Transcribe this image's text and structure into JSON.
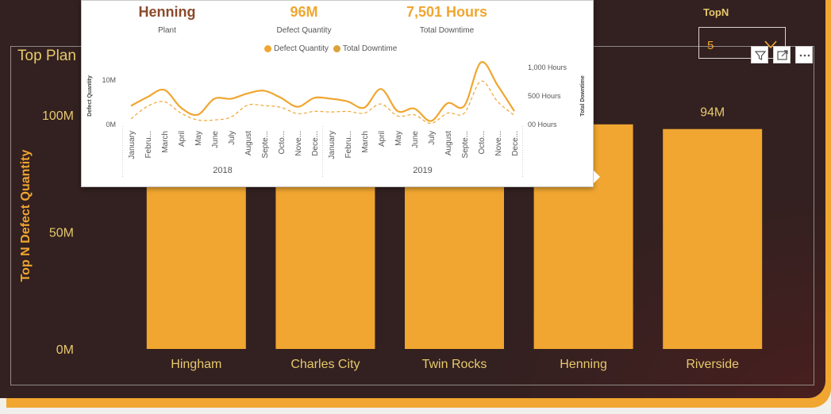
{
  "colors": {
    "accent": "#f0a630",
    "card_bg": "#332020",
    "title_gold": "#e6c96d",
    "kpi_brown": "#8b4a2b",
    "dot_total": "#d9a23a"
  },
  "topn": {
    "label": "TopN",
    "value": "5"
  },
  "header_icons": [
    "filter-icon",
    "focus-mode-icon",
    "more-options-icon"
  ],
  "main_visual": {
    "title": "Top Plan"
  },
  "tooltip": {
    "kpis": [
      {
        "value": "Henning",
        "label": "Plant"
      },
      {
        "value": "96M",
        "label": "Defect Quantity"
      },
      {
        "value": "7,501 Hours",
        "label": "Total Downtime"
      }
    ],
    "legend": [
      "Defect Quantity",
      "Total Downtime"
    ]
  },
  "chart_data": [
    {
      "type": "bar",
      "categories": [
        "Hingham",
        "Charles City",
        "Twin Rocks",
        "Henning",
        "Riverside"
      ],
      "values": [
        96,
        96,
        96,
        96,
        94
      ],
      "data_labels": [
        "",
        "",
        "",
        "",
        "94M"
      ],
      "ylabel": "Top N Defect Quantity",
      "yticks": [
        "0M",
        "50M",
        "100M"
      ],
      "ytick_values": [
        0,
        50,
        100
      ],
      "ylim": [
        0,
        100
      ],
      "grid": false
    },
    {
      "type": "line",
      "x": [
        "January",
        "Febru...",
        "March",
        "April",
        "May",
        "June",
        "July",
        "August",
        "Septe...",
        "Octo...",
        "Nove...",
        "Dece...",
        "January",
        "Febru...",
        "March",
        "April",
        "May",
        "June",
        "July",
        "August",
        "Septe...",
        "Octo...",
        "Nove...",
        "Dece..."
      ],
      "x_groups": [
        "2018",
        "2019"
      ],
      "series": [
        {
          "name": "Defect Quantity",
          "axis": "left",
          "style": "solid",
          "values": [
            4.2,
            6.2,
            7.8,
            3.8,
            2.2,
            5.8,
            5.8,
            7.0,
            7.6,
            6.0,
            4.0,
            6.0,
            5.8,
            5.2,
            3.8,
            8.0,
            3.0,
            3.6,
            0.8,
            4.8,
            4.2,
            14.0,
            8.8,
            3.0
          ]
        },
        {
          "name": "Total Downtime",
          "axis": "right",
          "style": "dashed",
          "values": [
            100,
            320,
            400,
            200,
            80,
            80,
            130,
            340,
            330,
            300,
            190,
            230,
            220,
            230,
            200,
            360,
            150,
            170,
            20,
            200,
            200,
            760,
            400,
            160
          ]
        }
      ],
      "y_left_label": "Defect Quantity",
      "y_left_ticks": [
        "0M",
        "10M"
      ],
      "y_left_tick_values": [
        0,
        10
      ],
      "y_right_label": "Total Downtime",
      "y_right_ticks": [
        "00 Hours",
        "500 Hours",
        "1,000 Hours"
      ],
      "y_right_tick_values": [
        0,
        500,
        1000
      ]
    }
  ]
}
